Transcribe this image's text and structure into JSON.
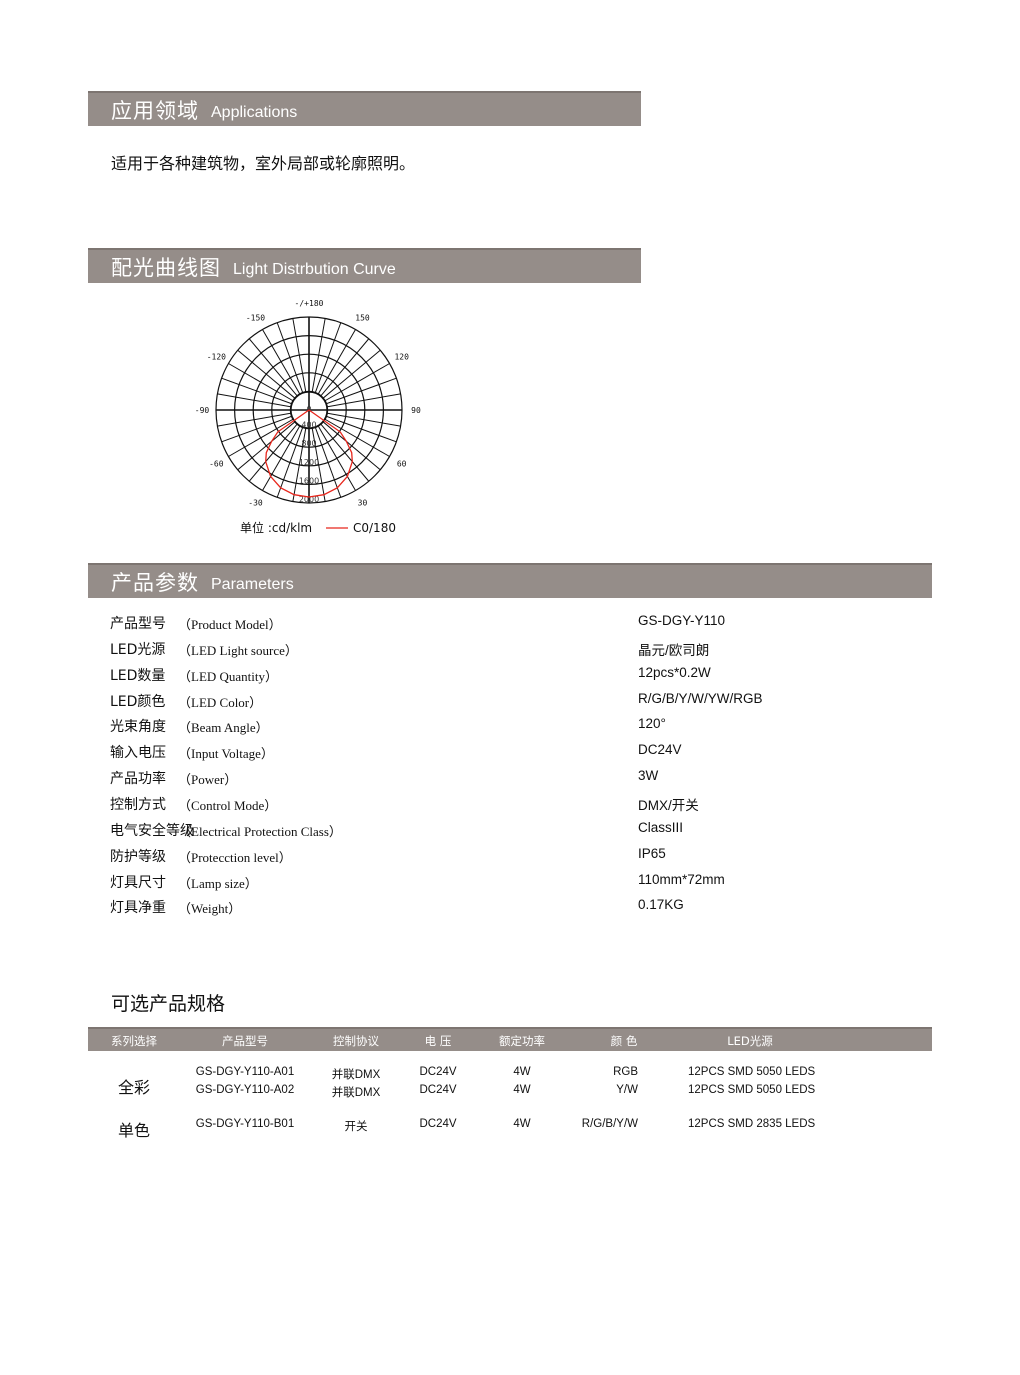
{
  "applications": {
    "title_cn": "应用领域",
    "title_en": "Applications",
    "text": "适用于各种建筑物，室外局部或轮廓照明。"
  },
  "curve_section": {
    "title_cn": "配光曲线图",
    "title_en": "Light Distrbution Curve"
  },
  "chart_data": {
    "type": "polar",
    "angle_labels": [
      {
        "angle": 180,
        "label": "-/+180"
      },
      {
        "angle": 150,
        "label": "150"
      },
      {
        "angle": -150,
        "label": "-150"
      },
      {
        "angle": 120,
        "label": "120"
      },
      {
        "angle": -120,
        "label": "-120"
      },
      {
        "angle": 90,
        "label": "90"
      },
      {
        "angle": -90,
        "label": "-90"
      },
      {
        "angle": 60,
        "label": "60"
      },
      {
        "angle": -60,
        "label": "-60"
      },
      {
        "angle": 30,
        "label": "30"
      },
      {
        "angle": -30,
        "label": "-30"
      }
    ],
    "radial_ticks": [
      "0",
      "400",
      "800",
      "1200",
      "1600",
      "2000"
    ],
    "rmax": 2000,
    "angle_step": 10,
    "unit_label": "单位 :cd/klm",
    "grid": true,
    "series": [
      {
        "name": "C0/180",
        "color": "#e8261c",
        "angles": [
          -55,
          -50,
          -45,
          -40,
          -30,
          -20,
          -10,
          0,
          10,
          20,
          30,
          40,
          45,
          50,
          55
        ],
        "values": [
          820,
          1050,
          1300,
          1450,
          1650,
          1780,
          1850,
          1870,
          1850,
          1780,
          1650,
          1450,
          1300,
          1050,
          820
        ]
      }
    ]
  },
  "parameters": {
    "title_cn": "产品参数",
    "title_en": "Parameters",
    "rows": [
      {
        "cn": "产品型号",
        "en": "（Product Model）",
        "value": "GS-DGY-Y110"
      },
      {
        "cn": "LED光源",
        "en": "（LED Light source）",
        "value": "晶元/欧司朗"
      },
      {
        "cn": "LED数量",
        "en": "（LED Quantity）",
        "value": "12pcs*0.2W"
      },
      {
        "cn": "LED颜色",
        "en": "（LED Color）",
        "value": "R/G/B/Y/W/YW/RGB"
      },
      {
        "cn": "光束角度",
        "en": "（Beam Angle）",
        "value": "120°"
      },
      {
        "cn": "输入电压",
        "en": "（Input Voltage）",
        "value": "DC24V"
      },
      {
        "cn": "产品功率",
        "en": "（Power）",
        "value": "3W"
      },
      {
        "cn": "控制方式",
        "en": "（Control Mode）",
        "value": "DMX/开关"
      },
      {
        "cn": "电气安全等级",
        "en": "（Electrical Protection Class）",
        "value": "ClassIII"
      },
      {
        "cn": "防护等级",
        "en": "（Protecction level）",
        "value": "IP65"
      },
      {
        "cn": "灯具尺寸",
        "en": "（Lamp size）",
        "value": "110mm*72mm"
      },
      {
        "cn": "灯具净重",
        "en": "（Weight）",
        "value": "0.17KG"
      }
    ]
  },
  "options": {
    "title": "可选产品规格",
    "headers": [
      "系列选择",
      "产品型号",
      "控制协议",
      "电 压",
      "额定功率",
      "颜 色",
      "LED光源"
    ],
    "groups": [
      {
        "series": "全彩",
        "rows": [
          {
            "model": "GS-DGY-Y110-A01",
            "protocol": "并联DMX",
            "voltage": "DC24V",
            "power": "4W",
            "color": "RGB",
            "led": "12PCS SMD 5050 LEDS"
          },
          {
            "model": "GS-DGY-Y110-A02",
            "protocol": "并联DMX",
            "voltage": "DC24V",
            "power": "4W",
            "color": "Y/W",
            "led": "12PCS SMD 5050 LEDS"
          }
        ]
      },
      {
        "series": "单色",
        "rows": [
          {
            "model": "GS-DGY-Y110-B01",
            "protocol": "开关",
            "voltage": "DC24V",
            "power": "4W",
            "color": "R/G/B/Y/W",
            "led": "12PCS SMD 2835 LEDS"
          }
        ]
      }
    ]
  }
}
